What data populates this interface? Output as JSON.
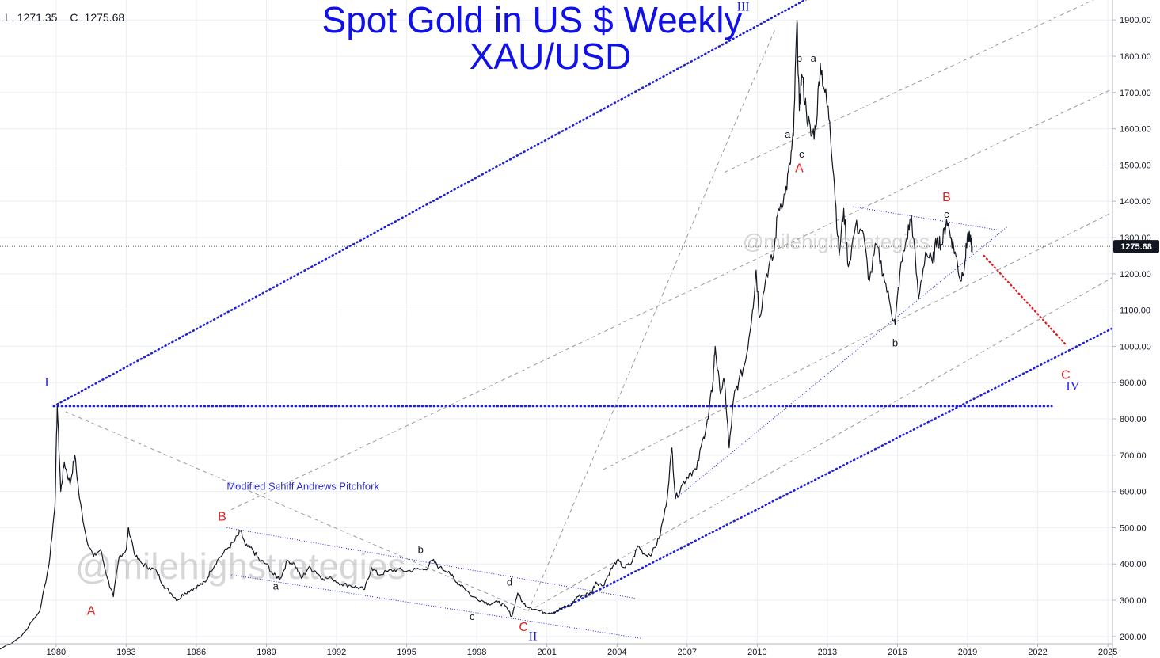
{
  "header": {
    "low_label": "L",
    "low_value": "1271.35",
    "close_label": "C",
    "close_value": "1275.68"
  },
  "watermark": {
    "small": "@milehighstrategies",
    "large": "@milehighstrategies"
  },
  "chart_data": {
    "type": "line",
    "title": "Spot Gold in US $ Weekly",
    "subtitle": "XAU/USD",
    "x_ticks": [
      "1980",
      "1983",
      "1986",
      "1989",
      "1992",
      "1995",
      "1998",
      "2001",
      "2004",
      "2007",
      "2010",
      "2013",
      "2016",
      "2019",
      "2022",
      "2025"
    ],
    "y_ticks": [
      "200.00",
      "300.00",
      "400.00",
      "500.00",
      "600.00",
      "700.00",
      "800.00",
      "900.00",
      "1000.00",
      "1100.00",
      "1200.00",
      "1300.00",
      "1400.00",
      "1500.00",
      "1600.00",
      "1700.00",
      "1800.00",
      "1900.00"
    ],
    "xlim": [
      1977.6,
      2025.2
    ],
    "ylim": [
      180,
      1955
    ],
    "last_price": "1275.68",
    "series": [
      {
        "values": [
          [
            1977.6,
            165
          ],
          [
            1978.5,
            200
          ],
          [
            1979.3,
            270
          ],
          [
            1979.7,
            400
          ],
          [
            1979.95,
            560
          ],
          [
            1980.05,
            835
          ],
          [
            1980.2,
            600
          ],
          [
            1980.35,
            680
          ],
          [
            1980.6,
            620
          ],
          [
            1980.8,
            700
          ],
          [
            1981.0,
            580
          ],
          [
            1981.3,
            470
          ],
          [
            1981.6,
            420
          ],
          [
            1981.9,
            440
          ],
          [
            1982.2,
            360
          ],
          [
            1982.45,
            310
          ],
          [
            1982.7,
            420
          ],
          [
            1983.0,
            440
          ],
          [
            1983.1,
            500
          ],
          [
            1983.4,
            420
          ],
          [
            1983.7,
            400
          ],
          [
            1984.0,
            390
          ],
          [
            1984.3,
            380
          ],
          [
            1984.6,
            340
          ],
          [
            1984.9,
            320
          ],
          [
            1985.2,
            300
          ],
          [
            1985.5,
            320
          ],
          [
            1985.8,
            330
          ],
          [
            1986.1,
            340
          ],
          [
            1986.4,
            350
          ],
          [
            1986.6,
            380
          ],
          [
            1986.9,
            410
          ],
          [
            1987.3,
            440
          ],
          [
            1987.6,
            460
          ],
          [
            1987.9,
            490
          ],
          [
            1988.1,
            450
          ],
          [
            1988.4,
            440
          ],
          [
            1988.7,
            410
          ],
          [
            1989.0,
            400
          ],
          [
            1989.3,
            370
          ],
          [
            1989.6,
            360
          ],
          [
            1989.9,
            410
          ],
          [
            1990.2,
            400
          ],
          [
            1990.5,
            360
          ],
          [
            1990.8,
            390
          ],
          [
            1991.1,
            380
          ],
          [
            1991.4,
            360
          ],
          [
            1991.8,
            360
          ],
          [
            1992.2,
            345
          ],
          [
            1992.6,
            340
          ],
          [
            1992.9,
            335
          ],
          [
            1993.2,
            330
          ],
          [
            1993.5,
            390
          ],
          [
            1993.8,
            370
          ],
          [
            1994.2,
            380
          ],
          [
            1994.6,
            385
          ],
          [
            1995.0,
            380
          ],
          [
            1995.4,
            385
          ],
          [
            1995.8,
            385
          ],
          [
            1996.1,
            410
          ],
          [
            1996.4,
            390
          ],
          [
            1996.8,
            380
          ],
          [
            1997.1,
            350
          ],
          [
            1997.4,
            340
          ],
          [
            1997.8,
            310
          ],
          [
            1998.2,
            300
          ],
          [
            1998.5,
            290
          ],
          [
            1998.9,
            295
          ],
          [
            1999.2,
            285
          ],
          [
            1999.5,
            255
          ],
          [
            1999.75,
            320
          ],
          [
            2000.0,
            290
          ],
          [
            2000.3,
            280
          ],
          [
            2000.7,
            270
          ],
          [
            2001.1,
            265
          ],
          [
            2001.4,
            270
          ],
          [
            2001.7,
            280
          ],
          [
            2002.0,
            285
          ],
          [
            2002.3,
            310
          ],
          [
            2002.6,
            315
          ],
          [
            2002.9,
            320
          ],
          [
            2003.1,
            350
          ],
          [
            2003.4,
            340
          ],
          [
            2003.7,
            380
          ],
          [
            2004.0,
            410
          ],
          [
            2004.3,
            390
          ],
          [
            2004.6,
            400
          ],
          [
            2004.9,
            450
          ],
          [
            2005.2,
            425
          ],
          [
            2005.5,
            430
          ],
          [
            2005.8,
            470
          ],
          [
            2006.1,
            560
          ],
          [
            2006.35,
            720
          ],
          [
            2006.5,
            580
          ],
          [
            2006.8,
            620
          ],
          [
            2007.1,
            650
          ],
          [
            2007.4,
            660
          ],
          [
            2007.7,
            750
          ],
          [
            2007.9,
            800
          ],
          [
            2008.1,
            900
          ],
          [
            2008.2,
            1000
          ],
          [
            2008.4,
            880
          ],
          [
            2008.6,
            900
          ],
          [
            2008.8,
            720
          ],
          [
            2009.0,
            860
          ],
          [
            2009.2,
            900
          ],
          [
            2009.5,
            960
          ],
          [
            2009.8,
            1100
          ],
          [
            2009.95,
            1210
          ],
          [
            2010.1,
            1080
          ],
          [
            2010.4,
            1200
          ],
          [
            2010.7,
            1250
          ],
          [
            2010.9,
            1380
          ],
          [
            2011.2,
            1420
          ],
          [
            2011.4,
            1500
          ],
          [
            2011.55,
            1580
          ],
          [
            2011.7,
            1900
          ],
          [
            2011.8,
            1650
          ],
          [
            2011.9,
            1750
          ],
          [
            2012.1,
            1650
          ],
          [
            2012.3,
            1580
          ],
          [
            2012.5,
            1600
          ],
          [
            2012.7,
            1780
          ],
          [
            2012.9,
            1700
          ],
          [
            2013.1,
            1620
          ],
          [
            2013.3,
            1450
          ],
          [
            2013.5,
            1250
          ],
          [
            2013.7,
            1380
          ],
          [
            2013.9,
            1220
          ],
          [
            2014.2,
            1330
          ],
          [
            2014.5,
            1320
          ],
          [
            2014.8,
            1180
          ],
          [
            2015.1,
            1280
          ],
          [
            2015.4,
            1200
          ],
          [
            2015.7,
            1110
          ],
          [
            2015.9,
            1060
          ],
          [
            2016.1,
            1200
          ],
          [
            2016.4,
            1300
          ],
          [
            2016.6,
            1360
          ],
          [
            2016.9,
            1130
          ],
          [
            2017.2,
            1260
          ],
          [
            2017.5,
            1230
          ],
          [
            2017.7,
            1300
          ],
          [
            2017.9,
            1280
          ],
          [
            2018.1,
            1350
          ],
          [
            2018.3,
            1300
          ],
          [
            2018.5,
            1250
          ],
          [
            2018.7,
            1180
          ],
          [
            2018.9,
            1240
          ],
          [
            2019.0,
            1310
          ],
          [
            2019.15,
            1280
          ],
          [
            2019.2,
            1275.68
          ]
        ]
      }
    ],
    "wave_labels": [
      {
        "text": "I",
        "x": 1979.6,
        "y": 890,
        "color": "#1f1fd9"
      },
      {
        "text": "II",
        "x": 2000.4,
        "y": 190,
        "color": "#1f1fd9"
      },
      {
        "text": "III",
        "x": 2009.4,
        "y": 1925,
        "color": "#1f1fd9"
      },
      {
        "text": "IV",
        "x": 2023.5,
        "y": 880,
        "color": "#1f1fd9"
      },
      {
        "text": "A",
        "x": 1981.5,
        "y": 260,
        "color": "#e02020"
      },
      {
        "text": "B",
        "x": 1987.1,
        "y": 520,
        "color": "#e02020"
      },
      {
        "text": "C",
        "x": 2000.0,
        "y": 215,
        "color": "#e02020"
      },
      {
        "text": "A",
        "x": 2011.8,
        "y": 1480,
        "color": "#e02020"
      },
      {
        "text": "B",
        "x": 2018.1,
        "y": 1400,
        "color": "#e02020"
      },
      {
        "text": "C",
        "x": 2023.2,
        "y": 910,
        "color": "#e02020"
      },
      {
        "text": "a",
        "x": 1989.4,
        "y": 330,
        "color": "#131722"
      },
      {
        "text": "b",
        "x": 1995.6,
        "y": 430,
        "color": "#131722"
      },
      {
        "text": "c",
        "x": 1997.8,
        "y": 245,
        "color": "#131722"
      },
      {
        "text": "d",
        "x": 1999.4,
        "y": 340,
        "color": "#131722"
      },
      {
        "text": "a",
        "x": 2011.3,
        "y": 1575,
        "color": "#131722"
      },
      {
        "text": "b",
        "x": 2011.8,
        "y": 1785,
        "color": "#131722"
      },
      {
        "text": "a",
        "x": 2012.4,
        "y": 1785,
        "color": "#131722"
      },
      {
        "text": "c",
        "x": 2011.9,
        "y": 1520,
        "color": "#131722"
      },
      {
        "text": "b",
        "x": 2015.9,
        "y": 1000,
        "color": "#131722"
      },
      {
        "text": "c",
        "x": 2018.1,
        "y": 1355,
        "color": "#131722"
      }
    ],
    "annotations": [
      {
        "text": "Modified Schiff Andrews Pitchfork",
        "x": 1987.3,
        "y": 605,
        "color": "#2b2bcc"
      }
    ],
    "trend_lines": [
      {
        "kind": "blue-dotted-thick",
        "from": [
          1979.9,
          835
        ],
        "to": [
          2012.9,
          1985
        ]
      },
      {
        "kind": "blue-dotted-thick",
        "from": [
          1979.9,
          835
        ],
        "to": [
          2022.6,
          835
        ]
      },
      {
        "kind": "blue-dotted-thick",
        "from": [
          2001.3,
          265
        ],
        "to": [
          2025.2,
          1050
        ]
      },
      {
        "kind": "blue-thin",
        "from": [
          1987.3,
          500
        ],
        "to": [
          2004.8,
          305
        ]
      },
      {
        "kind": "blue-thin",
        "from": [
          1987.5,
          370
        ],
        "to": [
          2005.0,
          195
        ]
      },
      {
        "kind": "blue-thin",
        "from": [
          2006.5,
          580
        ],
        "to": [
          2020.7,
          1330
        ]
      },
      {
        "kind": "blue-thin",
        "from": [
          2014.1,
          1385
        ],
        "to": [
          2020.4,
          1320
        ]
      },
      {
        "kind": "red-dotted",
        "from": [
          2019.7,
          1250
        ],
        "to": [
          2023.2,
          1005
        ]
      },
      {
        "kind": "grey-dashed",
        "from": [
          1980.4,
          820
        ],
        "to": [
          2000.2,
          270
        ]
      },
      {
        "kind": "grey-dashed",
        "from": [
          2000.2,
          270
        ],
        "to": [
          2010.8,
          1880
        ]
      },
      {
        "kind": "grey-dashed",
        "from": [
          1987.5,
          550
        ],
        "to": [
          2025.2,
          1710
        ]
      },
      {
        "kind": "grey-dashed",
        "from": [
          2003.4,
          660
        ],
        "to": [
          2025.2,
          1370
        ]
      },
      {
        "kind": "grey-dashed",
        "from": [
          2000.5,
          280
        ],
        "to": [
          2025.2,
          1190
        ]
      },
      {
        "kind": "grey-dashed",
        "from": [
          2008.6,
          1480
        ],
        "to": [
          2025.2,
          1980
        ]
      }
    ],
    "colors": {
      "price": "#131722",
      "blue": "#1f1fd9",
      "red": "#e02020",
      "grid": "#eceef2",
      "axis_text": "#131722",
      "price_badge": "#131722"
    }
  }
}
